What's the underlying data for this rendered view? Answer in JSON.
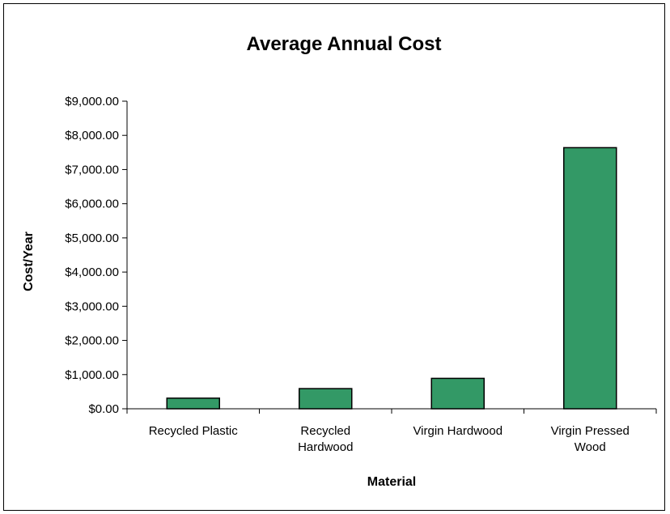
{
  "chart_data": {
    "type": "bar",
    "title": "Average Annual Cost",
    "xlabel": "Material",
    "ylabel": "Cost/Year",
    "categories": [
      [
        "Recycled Plastic"
      ],
      [
        "Recycled",
        "Hardwood"
      ],
      [
        "Virgin Hardwood"
      ],
      [
        "Virgin Pressed",
        "Wood"
      ]
    ],
    "values": [
      310,
      590,
      890,
      7640
    ],
    "ylim": [
      0,
      9000
    ],
    "yticks": [
      0,
      1000,
      2000,
      3000,
      4000,
      5000,
      6000,
      7000,
      8000,
      9000
    ],
    "ytick_labels": [
      "$0.00",
      "$1,000.00",
      "$2,000.00",
      "$3,000.00",
      "$4,000.00",
      "$5,000.00",
      "$6,000.00",
      "$7,000.00",
      "$8,000.00",
      "$9,000.00"
    ],
    "bar_color": "#339966",
    "grid": false,
    "legend": "none"
  }
}
